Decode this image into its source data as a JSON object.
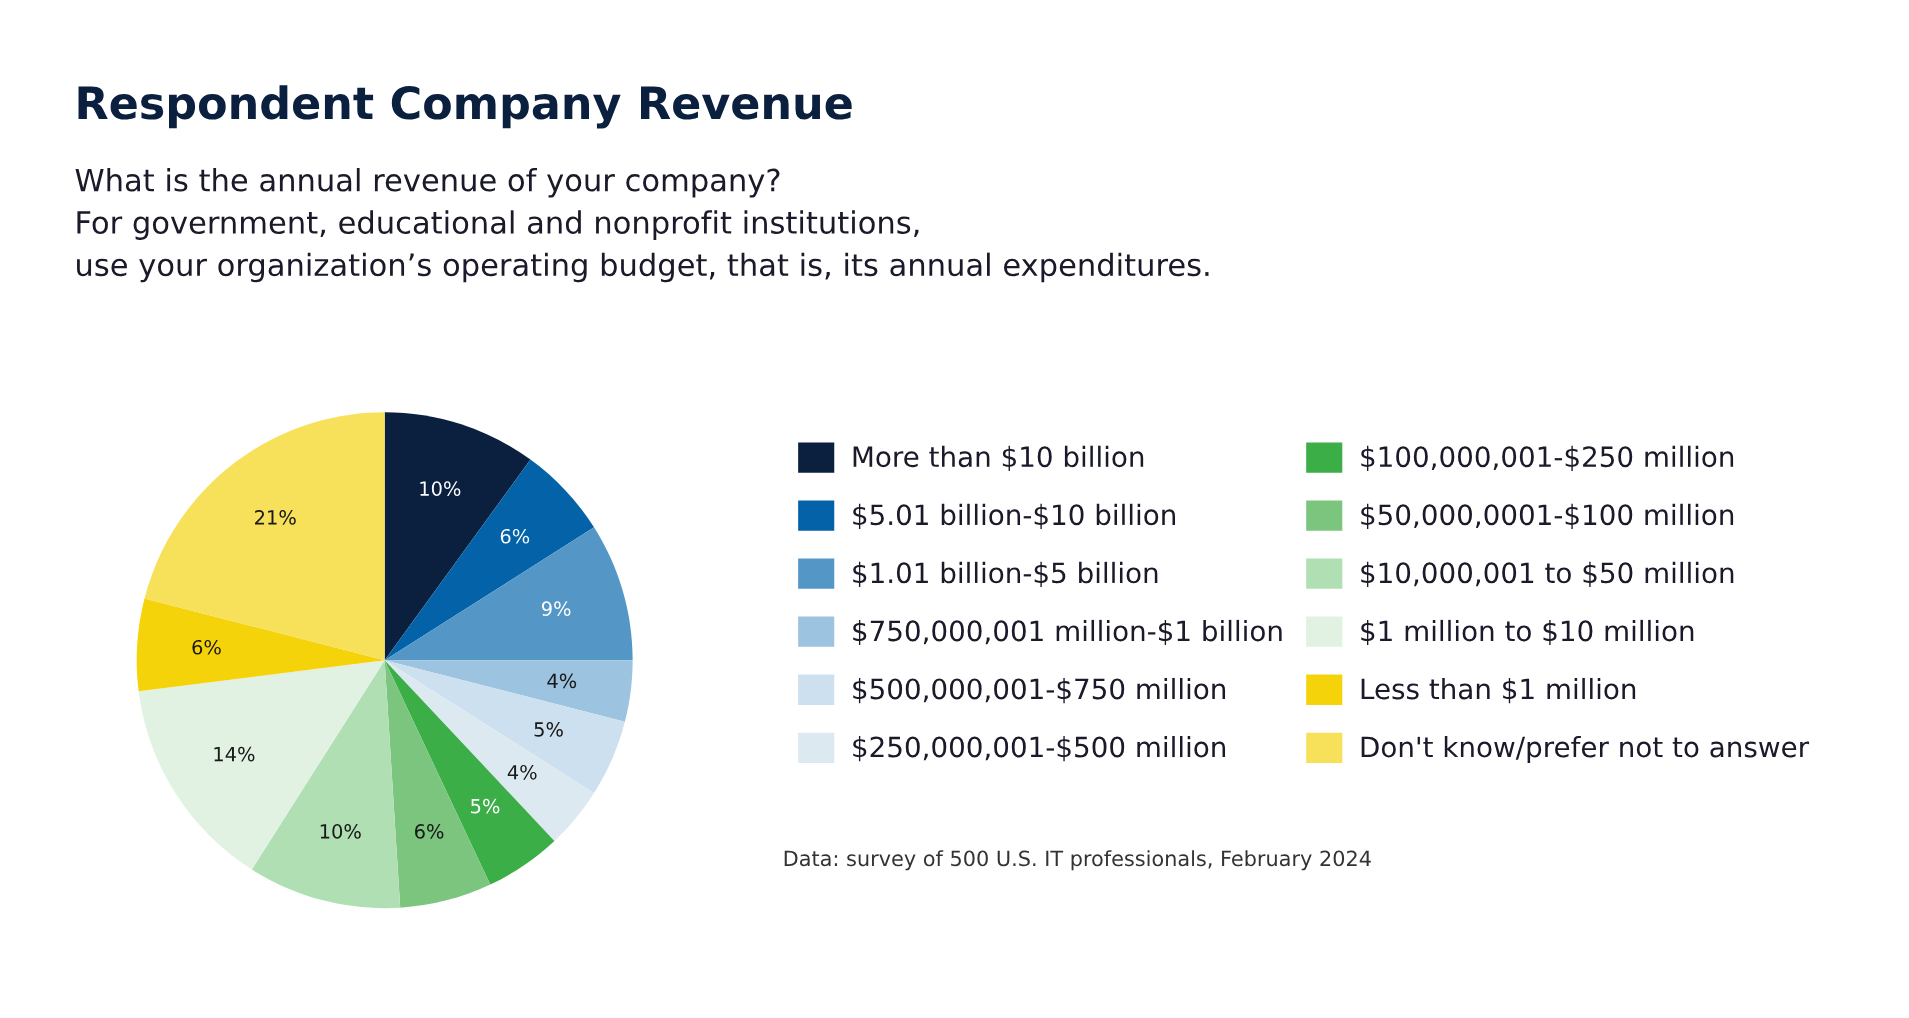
{
  "chart_data": {
    "type": "pie",
    "title": "Respondent Company Revenue",
    "subtitle": "What is the annual revenue of your company?\nFor government, educational and nonprofit institutions,\nuse your organization’s operating budget, that is, its annual expenditures.",
    "categories": [
      "More than $10 billion",
      "$5.01 billion-$10 billion",
      "$1.01 billion-$5 billion",
      "$750,000,001 million-$1 billion",
      "$500,000,001-$750 million",
      "$250,000,001-$500 million",
      "$100,000,001-$250 million",
      "$50,000,0001-$100 million",
      "$10,000,001 to $50 million",
      "$1 million to $10 million",
      "Less than $1 million",
      "Don't know/prefer not to answer"
    ],
    "values": [
      10,
      6,
      9,
      4,
      5,
      4,
      5,
      6,
      10,
      14,
      6,
      21
    ],
    "colors": [
      "#0b1f3f",
      "#0463a8",
      "#5497c6",
      "#9cc3df",
      "#cde0ef",
      "#dde9f1",
      "#3cae48",
      "#7bc57f",
      "#b1dfb4",
      "#e1f2e2",
      "#f5d30a",
      "#f7e05a"
    ],
    "value_labels": [
      "10%",
      "6%",
      "9%",
      "4%",
      "5%",
      "4%",
      "5%",
      "6%",
      "10%",
      "14%",
      "6%",
      "21%"
    ],
    "legend": "right",
    "annotations": [
      "Data: survey of 500 U.S. IT professionals, February 2024"
    ]
  }
}
